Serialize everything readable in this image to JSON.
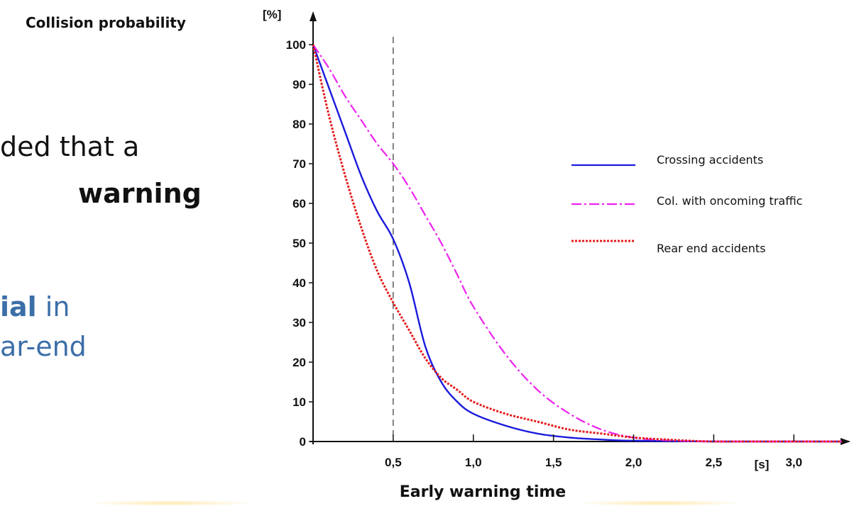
{
  "slide": {
    "line1": "ded that a",
    "line2_bold": "warning",
    "line3_bold": "ial",
    "line3_rest": " in",
    "line4": "ar-end"
  },
  "chart_data": {
    "type": "line",
    "title": "Collision probability",
    "xlabel": "Early warning time",
    "ylabel": "[%]",
    "x_unit_label": "[s]",
    "xlim": [
      0,
      3.3
    ],
    "ylim": [
      0,
      100
    ],
    "xticks": [
      0.5,
      1.0,
      1.5,
      2.0,
      2.5,
      3.0
    ],
    "xtick_labels": [
      "0,5",
      "1,0",
      "1,5",
      "2,0",
      "2,5",
      "3,0"
    ],
    "yticks": [
      0,
      10,
      20,
      30,
      40,
      50,
      60,
      70,
      80,
      90,
      100
    ],
    "ytick_labels": [
      "0",
      "10",
      "20",
      "30",
      "40",
      "50",
      "60",
      "70",
      "80",
      "90",
      "100"
    ],
    "reference_line_x": 0.5,
    "legend_position": "right",
    "grid": false,
    "series": [
      {
        "name": "Crossing accidents",
        "color": "#1a1adc",
        "style": "solid",
        "x": [
          0,
          0.1,
          0.2,
          0.3,
          0.4,
          0.5,
          0.6,
          0.7,
          0.8,
          0.9,
          1.0,
          1.2,
          1.4,
          1.6,
          1.8,
          2.0,
          2.5,
          3.0,
          3.3
        ],
        "y": [
          100,
          89,
          78,
          67,
          58,
          51,
          40,
          24,
          15,
          10,
          7,
          4,
          2,
          1,
          0.5,
          0.2,
          0,
          0,
          0
        ]
      },
      {
        "name": "Col. with oncoming traffic",
        "color": "#ee22ee",
        "style": "dashdot",
        "x": [
          0,
          0.1,
          0.2,
          0.3,
          0.4,
          0.5,
          0.6,
          0.7,
          0.8,
          0.9,
          1.0,
          1.2,
          1.4,
          1.6,
          1.8,
          2.0,
          2.2,
          2.5,
          3.0,
          3.3
        ],
        "y": [
          100,
          94,
          87,
          81,
          75,
          70,
          64,
          57,
          50,
          42,
          34,
          22,
          13,
          7,
          3,
          1,
          0.3,
          0,
          0,
          0
        ]
      },
      {
        "name": "Rear end accidents",
        "color": "#e41c1c",
        "style": "dotted",
        "x": [
          0,
          0.1,
          0.2,
          0.3,
          0.4,
          0.5,
          0.6,
          0.7,
          0.8,
          0.9,
          1.0,
          1.2,
          1.4,
          1.6,
          1.8,
          2.0,
          2.2,
          2.5,
          3.0,
          3.3
        ],
        "y": [
          100,
          82,
          67,
          54,
          43,
          35,
          28,
          21,
          16,
          13,
          10,
          7,
          5,
          3,
          2,
          1,
          0.5,
          0,
          0,
          0
        ]
      }
    ]
  }
}
